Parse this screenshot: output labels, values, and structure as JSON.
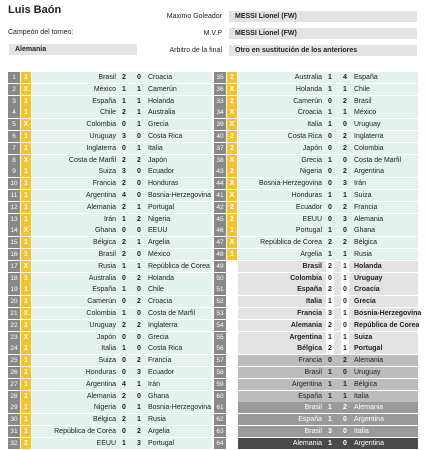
{
  "header": {
    "user_name": "Luis Baón",
    "champion_label": "Campeón del torneo:",
    "champion_value": "Alemania",
    "top_scorer_label": "Maximo Goleador",
    "top_scorer_value": "MESSI Lionel (FW)",
    "mvp_label": "M.V.P",
    "mvp_value": "MESSI Lionel (FW)",
    "referee_label": "Arbitro de la final",
    "referee_value": "Otro en sustitución de los anteriores"
  },
  "left_matches": [
    {
      "n": "1",
      "m": "1",
      "home": "Brasil",
      "s1": "2",
      "s2": "0",
      "away": "Croacia"
    },
    {
      "n": "2",
      "m": "X",
      "home": "México",
      "s1": "1",
      "s2": "1",
      "away": "Camerún"
    },
    {
      "n": "3",
      "m": "1",
      "home": "España",
      "s1": "1",
      "s2": "1",
      "away": "Holanda"
    },
    {
      "n": "4",
      "m": "1",
      "home": "Chile",
      "s1": "2",
      "s2": "1",
      "away": "Australia"
    },
    {
      "n": "5",
      "m": "X",
      "home": "Colombia",
      "s1": "0",
      "s2": "1",
      "away": "Grecia"
    },
    {
      "n": "6",
      "m": "1",
      "home": "Uruguay",
      "s1": "3",
      "s2": "0",
      "away": "Costa Rica"
    },
    {
      "n": "7",
      "m": "1",
      "home": "Inglaterra",
      "s1": "0",
      "s2": "1",
      "away": "Italia"
    },
    {
      "n": "8",
      "m": "X",
      "home": "Costa de Marfil",
      "s1": "2",
      "s2": "2",
      "away": "Japón"
    },
    {
      "n": "9",
      "m": "1",
      "home": "Suiza",
      "s1": "3",
      "s2": "0",
      "away": "Ecuador"
    },
    {
      "n": "10",
      "m": "1",
      "home": "Francia",
      "s1": "2",
      "s2": "0",
      "away": "Honduras"
    },
    {
      "n": "11",
      "m": "1",
      "home": "Argentina",
      "s1": "4",
      "s2": "0",
      "away": "Bosnia-Herzegovina"
    },
    {
      "n": "12",
      "m": "1",
      "home": "Alemania",
      "s1": "2",
      "s2": "1",
      "away": "Portugal"
    },
    {
      "n": "13",
      "m": "1",
      "home": "Irán",
      "s1": "1",
      "s2": "2",
      "away": "Nigeria"
    },
    {
      "n": "14",
      "m": "X",
      "home": "Ghana",
      "s1": "0",
      "s2": "0",
      "away": "EEUU"
    },
    {
      "n": "15",
      "m": "1",
      "home": "Bélgica",
      "s1": "2",
      "s2": "1",
      "away": "Argelia"
    },
    {
      "n": "16",
      "m": "1",
      "home": "Brasil",
      "s1": "2",
      "s2": "0",
      "away": "México"
    },
    {
      "n": "17",
      "m": "X",
      "home": "Rusia",
      "s1": "1",
      "s2": "1",
      "away": "República de Corea"
    },
    {
      "n": "18",
      "m": "1",
      "home": "Australia",
      "s1": "0",
      "s2": "2",
      "away": "Holanda"
    },
    {
      "n": "19",
      "m": "1",
      "home": "España",
      "s1": "1",
      "s2": "0",
      "away": "Chile"
    },
    {
      "n": "20",
      "m": "1",
      "home": "Camerún",
      "s1": "0",
      "s2": "2",
      "away": "Croacia"
    },
    {
      "n": "21",
      "m": "X",
      "home": "Colombia",
      "s1": "1",
      "s2": "0",
      "away": "Costa de Marfil"
    },
    {
      "n": "22",
      "m": "1",
      "home": "Uruguay",
      "s1": "2",
      "s2": "2",
      "away": "Inglaterra"
    },
    {
      "n": "23",
      "m": "X",
      "home": "Japón",
      "s1": "0",
      "s2": "0",
      "away": "Grecia"
    },
    {
      "n": "24",
      "m": "1",
      "home": "Italia",
      "s1": "1",
      "s2": "0",
      "away": "Costa Rica"
    },
    {
      "n": "25",
      "m": "1",
      "home": "Suiza",
      "s1": "0",
      "s2": "2",
      "away": "Francia"
    },
    {
      "n": "26",
      "m": "1",
      "home": "Honduras",
      "s1": "0",
      "s2": "3",
      "away": "Ecuador"
    },
    {
      "n": "27",
      "m": "1",
      "home": "Argentina",
      "s1": "4",
      "s2": "1",
      "away": "Irán"
    },
    {
      "n": "28",
      "m": "1",
      "home": "Alemania",
      "s1": "2",
      "s2": "0",
      "away": "Ghana"
    },
    {
      "n": "29",
      "m": "1",
      "home": "Nigeria",
      "s1": "0",
      "s2": "1",
      "away": "Bosnia-Herzegovina"
    },
    {
      "n": "30",
      "m": "1",
      "home": "Bélgica",
      "s1": "2",
      "s2": "1",
      "away": "Rusia"
    },
    {
      "n": "31",
      "m": "1",
      "home": "República de Corea",
      "s1": "0",
      "s2": "2",
      "away": "Argelia"
    },
    {
      "n": "32",
      "m": "2",
      "home": "EEUU",
      "s1": "1",
      "s2": "3",
      "away": "Portugal"
    }
  ],
  "right_matches": [
    {
      "n": "35",
      "m": "2",
      "home": "Australia",
      "s1": "1",
      "s2": "4",
      "away": "España",
      "t": ""
    },
    {
      "n": "36",
      "m": "X",
      "home": "Holanda",
      "s1": "1",
      "s2": "1",
      "away": "Chile",
      "t": ""
    },
    {
      "n": "33",
      "m": "2",
      "home": "Camerún",
      "s1": "0",
      "s2": "2",
      "away": "Brasil",
      "t": ""
    },
    {
      "n": "34",
      "m": "X",
      "home": "Croacia",
      "s1": "1",
      "s2": "1",
      "away": "México",
      "t": ""
    },
    {
      "n": "39",
      "m": "X",
      "home": "Italia",
      "s1": "1",
      "s2": "0",
      "away": "Uruguay",
      "t": ""
    },
    {
      "n": "40",
      "m": "2",
      "home": "Costa Rica",
      "s1": "0",
      "s2": "2",
      "away": "Inglaterra",
      "t": ""
    },
    {
      "n": "37",
      "m": "2",
      "home": "Japón",
      "s1": "0",
      "s2": "2",
      "away": "Colombia",
      "t": ""
    },
    {
      "n": "38",
      "m": "X",
      "home": "Grecia",
      "s1": "1",
      "s2": "0",
      "away": "Costa de Marfil",
      "t": ""
    },
    {
      "n": "43",
      "m": "2",
      "home": "Nigeria",
      "s1": "0",
      "s2": "2",
      "away": "Argentina",
      "t": ""
    },
    {
      "n": "44",
      "m": "X",
      "home": "Bosnia-Herzegovina",
      "s1": "0",
      "s2": "3",
      "away": "Irán",
      "t": ""
    },
    {
      "n": "41",
      "m": "X",
      "home": "Honduras",
      "s1": "1",
      "s2": "1",
      "away": "Suiza",
      "t": ""
    },
    {
      "n": "42",
      "m": "2",
      "home": "Ecuador",
      "s1": "0",
      "s2": "2",
      "away": "Francia",
      "t": ""
    },
    {
      "n": "45",
      "m": "2",
      "home": "EEUU",
      "s1": "0",
      "s2": "3",
      "away": "Alemania",
      "t": ""
    },
    {
      "n": "46",
      "m": "1",
      "home": "Portugal",
      "s1": "1",
      "s2": "0",
      "away": "Ghana",
      "t": ""
    },
    {
      "n": "47",
      "m": "X",
      "home": "República de Corea",
      "s1": "2",
      "s2": "2",
      "away": "Bélgica",
      "t": ""
    },
    {
      "n": "48",
      "m": "1",
      "home": "Argelia",
      "s1": "1",
      "s2": "1",
      "away": "Rusia",
      "t": ""
    },
    {
      "n": "49",
      "m": "",
      "home": "Brasil",
      "s1": "2",
      "s2": "1",
      "away": "Holanda",
      "t": "ko"
    },
    {
      "n": "50",
      "m": "",
      "home": "Colombia",
      "s1": "0",
      "s2": "1",
      "away": "Uruguay",
      "t": "ko"
    },
    {
      "n": "51",
      "m": "",
      "home": "España",
      "s1": "2",
      "s2": "0",
      "away": "Croacia",
      "t": "ko"
    },
    {
      "n": "52",
      "m": "",
      "home": "Italia",
      "s1": "1",
      "s2": "0",
      "away": "Grecia",
      "t": "ko"
    },
    {
      "n": "53",
      "m": "",
      "home": "Francia",
      "s1": "3",
      "s2": "1",
      "away": "Bosnia-Herzegovina",
      "t": "ko"
    },
    {
      "n": "54",
      "m": "",
      "home": "Alemania",
      "s1": "2",
      "s2": "0",
      "away": "República de Corea",
      "t": "ko"
    },
    {
      "n": "55",
      "m": "",
      "home": "Argentina",
      "s1": "1",
      "s2": "1",
      "away": "Suiza",
      "t": "ko"
    },
    {
      "n": "56",
      "m": "",
      "home": "Bélgica",
      "s1": "2",
      "s2": "1",
      "away": "Portugal",
      "t": "ko"
    },
    {
      "n": "57",
      "m": "",
      "home": "Francia",
      "s1": "0",
      "s2": "2",
      "away": "Alemania",
      "t": "qf"
    },
    {
      "n": "58",
      "m": "",
      "home": "Brasil",
      "s1": "1",
      "s2": "0",
      "away": "Uruguay",
      "t": "qf"
    },
    {
      "n": "59",
      "m": "",
      "home": "Argentina",
      "s1": "1",
      "s2": "1",
      "away": "Bélgica",
      "t": "qf"
    },
    {
      "n": "60",
      "m": "",
      "home": "España",
      "s1": "1",
      "s2": "1",
      "away": "Italia",
      "t": "qf"
    },
    {
      "n": "61",
      "m": "",
      "home": "Brasil",
      "s1": "1",
      "s2": "2",
      "away": "Alemania",
      "t": "sf"
    },
    {
      "n": "62",
      "m": "",
      "home": "España",
      "s1": "1",
      "s2": "0",
      "away": "Argentina",
      "t": "sf"
    },
    {
      "n": "63",
      "m": "",
      "home": "Brasil",
      "s1": "3",
      "s2": "0",
      "away": "Italia",
      "t": "sf"
    },
    {
      "n": "64",
      "m": "",
      "home": "Alemania",
      "s1": "1",
      "s2": "0",
      "away": "Argentina",
      "t": "fin"
    }
  ]
}
